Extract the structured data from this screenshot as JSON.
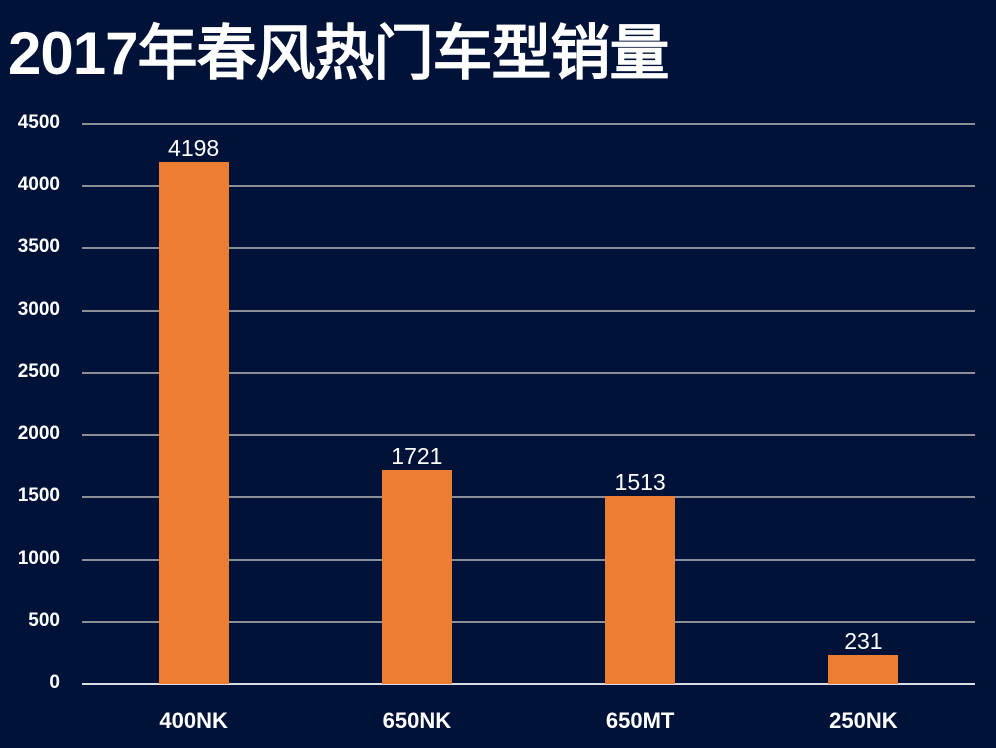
{
  "title": "2017年春风热门车型销量",
  "colors": {
    "background": "#001238",
    "bar": "#ED7D31",
    "grid": "#8a8f99",
    "text": "#ffffff"
  },
  "chart_data": {
    "type": "bar",
    "title": "2017年春风热门车型销量",
    "categories": [
      "400NK",
      "650NK",
      "650MT",
      "250NK"
    ],
    "values": [
      4198,
      1721,
      1513,
      231
    ],
    "data_labels": [
      "4198",
      "1721",
      "1513",
      "231"
    ],
    "xlabel": "",
    "ylabel": "",
    "ylim": [
      0,
      4500
    ],
    "yticks": [
      0,
      500,
      1000,
      1500,
      2000,
      2500,
      3000,
      3500,
      4000,
      4500
    ],
    "ytick_labels": [
      "0",
      "500",
      "1000",
      "1500",
      "2000",
      "2500",
      "3000",
      "3500",
      "4000",
      "4500"
    ],
    "grid": true,
    "legend": null
  }
}
